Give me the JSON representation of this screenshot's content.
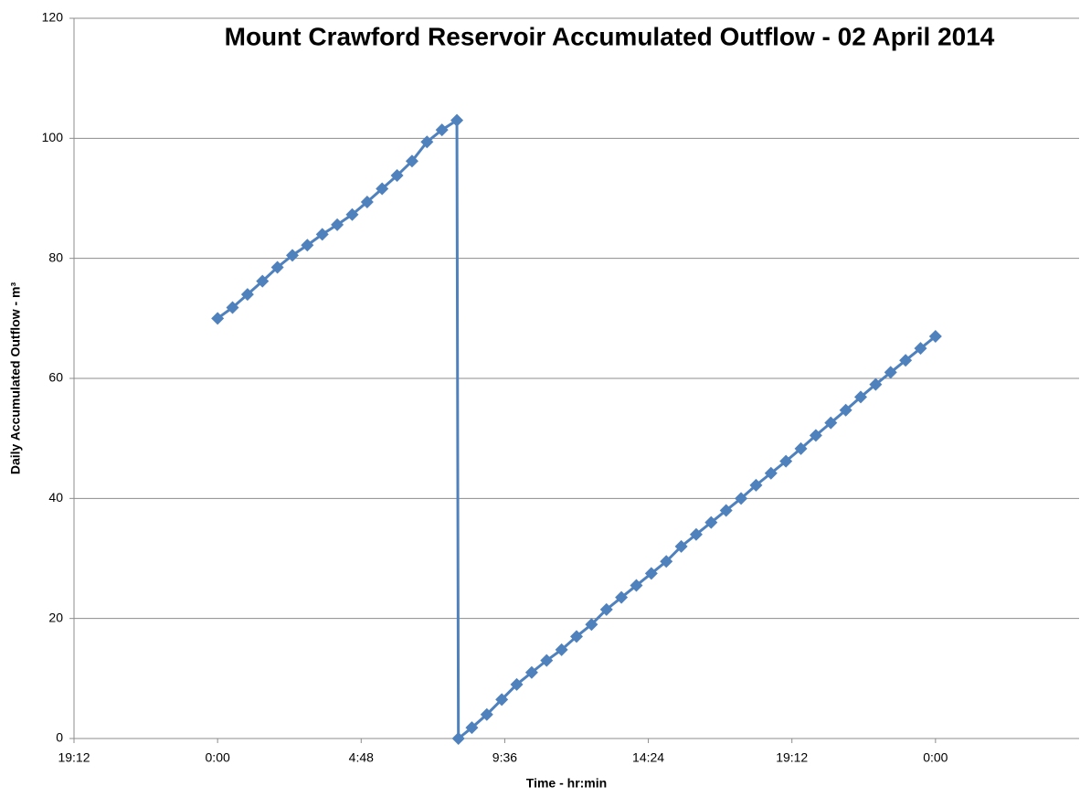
{
  "chart_data": {
    "type": "line",
    "title": "Mount Crawford Reservoir Accumulated Outflow - 02 April 2014",
    "x_label": "Time - hr:min",
    "y_label": "Daily Accumulated Outflow - m³",
    "xlim": [
      -4.8,
      28.8
    ],
    "xticks": [
      {
        "value": -4.8,
        "label": "19:12"
      },
      {
        "value": 0,
        "label": "0:00"
      },
      {
        "value": 4.8,
        "label": "4:48"
      },
      {
        "value": 9.6,
        "label": "9:36"
      },
      {
        "value": 14.4,
        "label": "14:24"
      },
      {
        "value": 19.2,
        "label": "19:12"
      },
      {
        "value": 24,
        "label": "0:00"
      }
    ],
    "ylim": [
      0,
      120
    ],
    "yticks": [
      0,
      20,
      40,
      60,
      80,
      100,
      120
    ],
    "grid": true,
    "color": "#4f81bd",
    "x": [
      0,
      0.5,
      1,
      1.5,
      2,
      2.5,
      3,
      3.5,
      4,
      4.5,
      5,
      5.5,
      6,
      6.5,
      7,
      7.5,
      8,
      8.05,
      8.5,
      9,
      9.5,
      10,
      10.5,
      11,
      11.5,
      12,
      12.5,
      13,
      13.5,
      14,
      14.5,
      15,
      15.5,
      16,
      16.5,
      17,
      17.5,
      18,
      18.5,
      19,
      19.5,
      20,
      20.5,
      21,
      21.5,
      22,
      22.5,
      23,
      23.5,
      24
    ],
    "values": [
      70,
      71.8,
      74,
      76.2,
      78.5,
      80.5,
      82.2,
      84,
      85.6,
      87.3,
      89.4,
      91.6,
      93.8,
      96.2,
      99.4,
      101.4,
      103,
      0,
      1.8,
      4,
      6.5,
      9,
      11,
      13,
      14.8,
      17,
      19,
      21.5,
      23.5,
      25.5,
      27.5,
      29.5,
      32,
      34,
      36,
      38,
      40,
      42.2,
      44.2,
      46.2,
      48.3,
      50.5,
      52.6,
      54.7,
      56.9,
      59,
      61,
      63,
      65,
      67
    ]
  }
}
